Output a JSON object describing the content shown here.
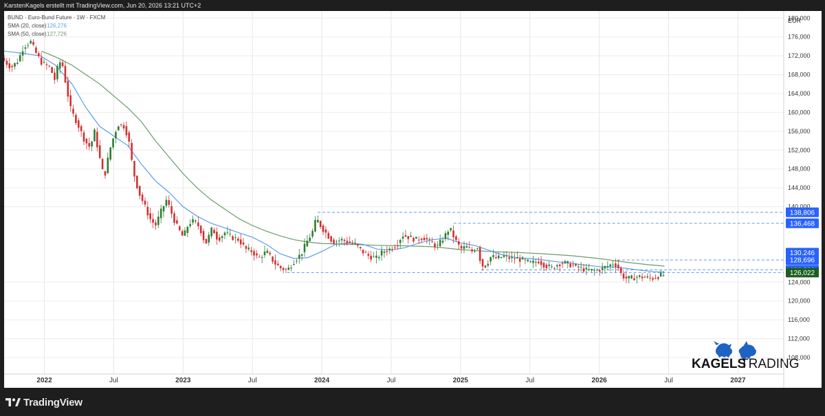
{
  "header": {
    "attribution": "KarstenKagels erstellt mit TradingView.com, Jun 20, 2026 13:21 UTC+2"
  },
  "footer": {
    "brand": "TradingView"
  },
  "legend": {
    "symbol": "BUND · Euro-Bund Future · 1W · FXCM",
    "sma20_label": "SMA (20, close)",
    "sma20_value": "126,276",
    "sma50_label": "SMA (50, close)",
    "sma50_value": "127,726"
  },
  "watermark": {
    "word1": "KAGELS",
    "word2": "TRADING"
  },
  "colors": {
    "sma20": "#5b9cf0",
    "sma50": "#6b9a6b",
    "up": "#2e7d32",
    "down": "#d32f2f",
    "level_line": "#5b9cf0",
    "label_bg": "#2962ff",
    "last_price_bg": "#1b5e20"
  },
  "chart_data": {
    "type": "candlestick",
    "currency": "EUR",
    "ylim": [
      104.5,
      181.5
    ],
    "y_ticks": [
      {
        "v": 180,
        "label": "180,000"
      },
      {
        "v": 176,
        "label": "176,000"
      },
      {
        "v": 172,
        "label": "172,000"
      },
      {
        "v": 168,
        "label": "168,000"
      },
      {
        "v": 164,
        "label": "164,000"
      },
      {
        "v": 160,
        "label": "160,000"
      },
      {
        "v": 156,
        "label": "156,000"
      },
      {
        "v": 152,
        "label": "152,000"
      },
      {
        "v": 148,
        "label": "148,000"
      },
      {
        "v": 144,
        "label": "144,000"
      },
      {
        "v": 140,
        "label": "140,000"
      },
      {
        "v": 124,
        "label": "124,000"
      },
      {
        "v": 120,
        "label": "120,000"
      },
      {
        "v": 116,
        "label": "116,000"
      },
      {
        "v": 112,
        "label": "112,000"
      },
      {
        "v": 108,
        "label": "108,000"
      }
    ],
    "x_ticks": [
      {
        "t": 2022.0,
        "label": "2022",
        "bold": true
      },
      {
        "t": 2022.5,
        "label": "Jul",
        "bold": false
      },
      {
        "t": 2023.0,
        "label": "2023",
        "bold": true
      },
      {
        "t": 2023.5,
        "label": "Jul",
        "bold": false
      },
      {
        "t": 2024.0,
        "label": "2024",
        "bold": true
      },
      {
        "t": 2024.5,
        "label": "Jul",
        "bold": false
      },
      {
        "t": 2025.0,
        "label": "2025",
        "bold": true
      },
      {
        "t": 2025.5,
        "label": "Jul",
        "bold": false
      },
      {
        "t": 2026.0,
        "label": "2026",
        "bold": true
      },
      {
        "t": 2026.5,
        "label": "Jul",
        "bold": false
      },
      {
        "t": 2027.0,
        "label": "2027",
        "bold": true
      }
    ],
    "xlim": [
      2021.71,
      2027.33
    ],
    "levels": [
      {
        "v": 138.806,
        "label": "138,806",
        "start": 2023.97
      },
      {
        "v": 136.468,
        "label": "136,468",
        "start": 2024.95
      },
      {
        "v": 130.246,
        "label": "130,246",
        "start": null
      },
      {
        "v": 128.696,
        "label": "128,696",
        "start": 2026.13
      },
      {
        "v": 126.596,
        "label": "126,596",
        "start": 2025.15
      }
    ],
    "last_price": {
      "v": 126.022,
      "label": "126,022",
      "start": 2023.75
    },
    "price_points": [
      [
        2021.71,
        171.5
      ],
      [
        2021.78,
        169.5
      ],
      [
        2021.83,
        171.0
      ],
      [
        2021.87,
        174.0
      ],
      [
        2021.92,
        175.0
      ],
      [
        2021.96,
        172.5
      ],
      [
        2022.0,
        170.5
      ],
      [
        2022.06,
        169.5
      ],
      [
        2022.1,
        166.5
      ],
      [
        2022.12,
        171.0
      ],
      [
        2022.15,
        170.0
      ],
      [
        2022.18,
        165.0
      ],
      [
        2022.21,
        160.5
      ],
      [
        2022.26,
        157.5
      ],
      [
        2022.31,
        154.0
      ],
      [
        2022.35,
        152.5
      ],
      [
        2022.38,
        156.0
      ],
      [
        2022.42,
        150.0
      ],
      [
        2022.45,
        146.0
      ],
      [
        2022.49,
        152.0
      ],
      [
        2022.52,
        155.0
      ],
      [
        2022.55,
        157.5
      ],
      [
        2022.6,
        157.0
      ],
      [
        2022.63,
        153.5
      ],
      [
        2022.66,
        147.5
      ],
      [
        2022.7,
        143.0
      ],
      [
        2022.73,
        141.0
      ],
      [
        2022.78,
        137.5
      ],
      [
        2022.82,
        136.0
      ],
      [
        2022.86,
        139.0
      ],
      [
        2022.9,
        141.5
      ],
      [
        2022.95,
        137.5
      ],
      [
        2022.98,
        135.5
      ],
      [
        2023.02,
        133.5
      ],
      [
        2023.06,
        136.5
      ],
      [
        2023.1,
        137.0
      ],
      [
        2023.14,
        135.5
      ],
      [
        2023.18,
        132.0
      ],
      [
        2023.23,
        135.5
      ],
      [
        2023.27,
        133.0
      ],
      [
        2023.32,
        134.5
      ],
      [
        2023.37,
        133.5
      ],
      [
        2023.42,
        133.0
      ],
      [
        2023.47,
        131.0
      ],
      [
        2023.52,
        130.5
      ],
      [
        2023.56,
        129.0
      ],
      [
        2023.62,
        130.5
      ],
      [
        2023.68,
        128.0
      ],
      [
        2023.72,
        127.0
      ],
      [
        2023.77,
        126.5
      ],
      [
        2023.82,
        128.5
      ],
      [
        2023.87,
        130.0
      ],
      [
        2023.91,
        132.5
      ],
      [
        2023.95,
        134.5
      ],
      [
        2023.98,
        137.5
      ],
      [
        2024.02,
        135.5
      ],
      [
        2024.06,
        134.0
      ],
      [
        2024.1,
        132.5
      ],
      [
        2024.16,
        133.0
      ],
      [
        2024.21,
        132.5
      ],
      [
        2024.26,
        132.0
      ],
      [
        2024.31,
        130.5
      ],
      [
        2024.36,
        129.5
      ],
      [
        2024.41,
        129.0
      ],
      [
        2024.46,
        130.5
      ],
      [
        2024.51,
        131.0
      ],
      [
        2024.56,
        132.0
      ],
      [
        2024.6,
        134.0
      ],
      [
        2024.65,
        133.5
      ],
      [
        2024.7,
        133.0
      ],
      [
        2024.75,
        133.5
      ],
      [
        2024.8,
        132.5
      ],
      [
        2024.85,
        131.5
      ],
      [
        2024.9,
        133.5
      ],
      [
        2024.94,
        135.5
      ],
      [
        2024.98,
        133.0
      ],
      [
        2025.02,
        131.0
      ],
      [
        2025.06,
        131.5
      ],
      [
        2025.1,
        130.5
      ],
      [
        2025.14,
        131.5
      ],
      [
        2025.17,
        127.5
      ],
      [
        2025.2,
        127.5
      ],
      [
        2025.24,
        129.5
      ],
      [
        2025.28,
        129.0
      ],
      [
        2025.33,
        129.5
      ],
      [
        2025.38,
        129.0
      ],
      [
        2025.43,
        129.0
      ],
      [
        2025.48,
        128.5
      ],
      [
        2025.53,
        128.0
      ],
      [
        2025.58,
        128.5
      ],
      [
        2025.63,
        127.5
      ],
      [
        2025.68,
        127.0
      ],
      [
        2025.73,
        128.0
      ],
      [
        2025.78,
        128.0
      ],
      [
        2025.83,
        127.5
      ],
      [
        2025.88,
        127.0
      ],
      [
        2025.93,
        126.5
      ],
      [
        2025.97,
        126.5
      ],
      [
        2026.01,
        126.5
      ],
      [
        2026.05,
        127.0
      ],
      [
        2026.09,
        127.5
      ],
      [
        2026.12,
        128.0
      ],
      [
        2026.15,
        127.5
      ],
      [
        2026.18,
        125.5
      ],
      [
        2026.21,
        124.8
      ],
      [
        2026.25,
        124.8
      ],
      [
        2026.3,
        125.2
      ],
      [
        2026.35,
        125.0
      ],
      [
        2026.4,
        124.8
      ],
      [
        2026.44,
        125.2
      ],
      [
        2026.47,
        125.5
      ]
    ],
    "sma20_points": [
      [
        2021.71,
        173.0
      ],
      [
        2021.85,
        172.5
      ],
      [
        2021.97,
        172.0
      ],
      [
        2022.08,
        170.0
      ],
      [
        2022.2,
        166.0
      ],
      [
        2022.3,
        161.0
      ],
      [
        2022.4,
        157.0
      ],
      [
        2022.5,
        155.0
      ],
      [
        2022.6,
        153.0
      ],
      [
        2022.7,
        149.0
      ],
      [
        2022.8,
        145.5
      ],
      [
        2022.9,
        143.0
      ],
      [
        2023.0,
        140.0
      ],
      [
        2023.1,
        138.0
      ],
      [
        2023.2,
        136.5
      ],
      [
        2023.3,
        135.5
      ],
      [
        2023.4,
        134.5
      ],
      [
        2023.5,
        133.5
      ],
      [
        2023.6,
        132.0
      ],
      [
        2023.7,
        130.0
      ],
      [
        2023.8,
        129.0
      ],
      [
        2023.9,
        129.2
      ],
      [
        2024.0,
        130.5
      ],
      [
        2024.1,
        132.0
      ],
      [
        2024.2,
        132.3
      ],
      [
        2024.3,
        132.0
      ],
      [
        2024.4,
        131.0
      ],
      [
        2024.5,
        130.8
      ],
      [
        2024.6,
        131.3
      ],
      [
        2024.7,
        132.3
      ],
      [
        2024.8,
        133.0
      ],
      [
        2024.9,
        133.3
      ],
      [
        2025.0,
        132.3
      ],
      [
        2025.1,
        131.8
      ],
      [
        2025.2,
        130.8
      ],
      [
        2025.3,
        129.8
      ],
      [
        2025.4,
        129.2
      ],
      [
        2025.5,
        129.0
      ],
      [
        2025.6,
        128.7
      ],
      [
        2025.7,
        128.3
      ],
      [
        2025.8,
        128.0
      ],
      [
        2025.9,
        127.6
      ],
      [
        2026.0,
        127.3
      ],
      [
        2026.1,
        127.2
      ],
      [
        2026.2,
        126.9
      ],
      [
        2026.3,
        126.5
      ],
      [
        2026.4,
        126.2
      ],
      [
        2026.47,
        126.1
      ]
    ],
    "sma50_points": [
      [
        2021.98,
        173.0
      ],
      [
        2022.1,
        171.5
      ],
      [
        2022.2,
        170.0
      ],
      [
        2022.3,
        168.0
      ],
      [
        2022.4,
        166.0
      ],
      [
        2022.5,
        163.5
      ],
      [
        2022.6,
        161.0
      ],
      [
        2022.7,
        158.0
      ],
      [
        2022.8,
        154.0
      ],
      [
        2022.9,
        150.5
      ],
      [
        2023.0,
        147.0
      ],
      [
        2023.1,
        144.0
      ],
      [
        2023.2,
        141.5
      ],
      [
        2023.3,
        139.5
      ],
      [
        2023.4,
        137.5
      ],
      [
        2023.5,
        136.0
      ],
      [
        2023.6,
        134.8
      ],
      [
        2023.7,
        133.8
      ],
      [
        2023.8,
        133.0
      ],
      [
        2023.9,
        132.5
      ],
      [
        2024.0,
        132.2
      ],
      [
        2024.2,
        132.0
      ],
      [
        2024.4,
        131.8
      ],
      [
        2024.6,
        131.7
      ],
      [
        2024.8,
        131.5
      ],
      [
        2024.9,
        131.2
      ],
      [
        2025.0,
        130.9
      ],
      [
        2025.2,
        130.5
      ],
      [
        2025.4,
        130.3
      ],
      [
        2025.6,
        130.0
      ],
      [
        2025.8,
        129.6
      ],
      [
        2026.0,
        129.0
      ],
      [
        2026.2,
        128.2
      ],
      [
        2026.35,
        127.7
      ],
      [
        2026.47,
        127.4
      ]
    ]
  }
}
